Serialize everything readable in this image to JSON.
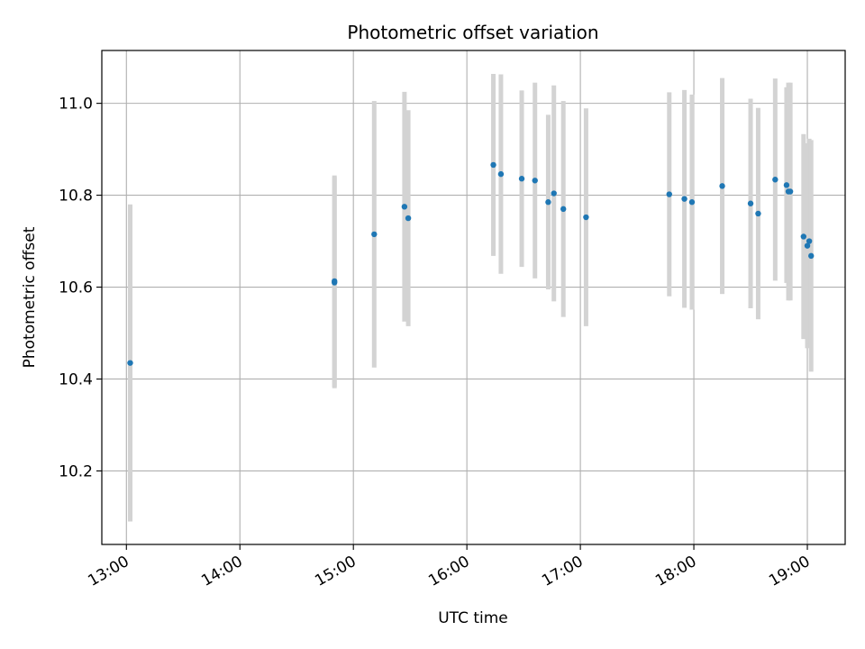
{
  "chart_data": {
    "type": "scatter",
    "title": "Photometric offset variation",
    "xlabel": "UTC time",
    "ylabel": "Photometric offset",
    "x_tick_labels": [
      "13:00",
      "14:00",
      "15:00",
      "16:00",
      "17:00",
      "18:00",
      "19:00"
    ],
    "y_tick_labels": [
      "10.2",
      "10.4",
      "10.6",
      "10.8",
      "11.0"
    ],
    "xlim": [
      "12:47",
      "19:20"
    ],
    "ylim": [
      10.04,
      11.115
    ],
    "grid": true,
    "point_color": "#1f77b4",
    "errorbar_color": "#d3d3d3",
    "points": [
      {
        "time": "13:02",
        "y": 10.435,
        "err": 0.345
      },
      {
        "time": "14:50",
        "y": 10.61,
        "err": 0.23
      },
      {
        "time": "14:50",
        "y": 10.613,
        "err": 0.23
      },
      {
        "time": "15:11",
        "y": 10.715,
        "err": 0.29
      },
      {
        "time": "15:27",
        "y": 10.775,
        "err": 0.25
      },
      {
        "time": "15:29",
        "y": 10.75,
        "err": 0.235
      },
      {
        "time": "16:14",
        "y": 10.866,
        "err": 0.198
      },
      {
        "time": "16:18",
        "y": 10.846,
        "err": 0.217
      },
      {
        "time": "16:29",
        "y": 10.836,
        "err": 0.192
      },
      {
        "time": "16:36",
        "y": 10.832,
        "err": 0.213
      },
      {
        "time": "16:43",
        "y": 10.785,
        "err": 0.19
      },
      {
        "time": "16:46",
        "y": 10.804,
        "err": 0.235
      },
      {
        "time": "16:51",
        "y": 10.77,
        "err": 0.235
      },
      {
        "time": "17:03",
        "y": 10.752,
        "err": 0.237
      },
      {
        "time": "17:47",
        "y": 10.802,
        "err": 0.222
      },
      {
        "time": "17:55",
        "y": 10.792,
        "err": 0.237
      },
      {
        "time": "17:59",
        "y": 10.785,
        "err": 0.234
      },
      {
        "time": "18:15",
        "y": 10.82,
        "err": 0.235
      },
      {
        "time": "18:30",
        "y": 10.782,
        "err": 0.228
      },
      {
        "time": "18:34",
        "y": 10.76,
        "err": 0.23
      },
      {
        "time": "18:43",
        "y": 10.834,
        "err": 0.22
      },
      {
        "time": "18:49",
        "y": 10.822,
        "err": 0.213
      },
      {
        "time": "18:50",
        "y": 10.808,
        "err": 0.237
      },
      {
        "time": "18:51",
        "y": 10.808,
        "err": 0.237
      },
      {
        "time": "18:58",
        "y": 10.71,
        "err": 0.223
      },
      {
        "time": "19:00",
        "y": 10.69,
        "err": 0.223
      },
      {
        "time": "19:01",
        "y": 10.7,
        "err": 0.223
      },
      {
        "time": "19:02",
        "y": 10.668,
        "err": 0.252
      }
    ]
  }
}
